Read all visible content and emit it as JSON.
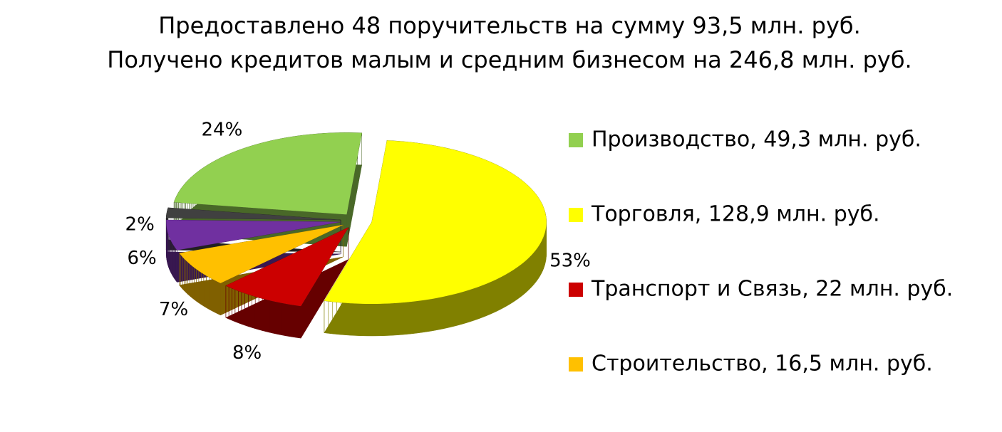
{
  "chart_data": {
    "type": "pie",
    "title": [
      "Предоставлено 48 поручительств на сумму 93,5 млн. руб.",
      "Получено кредитов малым и средним бизнесом на 246,8 млн. руб."
    ],
    "categories": [
      "Производство, 49,3 млн. руб.",
      "Торговля, 128,9 млн. руб.",
      "Транспорт и Связь, 22 млн. руб.",
      "Строительство, 16,5 млн. руб.",
      null,
      null
    ],
    "values": [
      24,
      53,
      8,
      7,
      6,
      2
    ],
    "value_labels": [
      "24%",
      "53%",
      "8%",
      "7%",
      "6%",
      "2%"
    ],
    "colors": [
      "#92d050",
      "#ffff00",
      "#cc0000",
      "#ffc000",
      "#7030a0",
      "#404040"
    ],
    "legend": "right"
  }
}
